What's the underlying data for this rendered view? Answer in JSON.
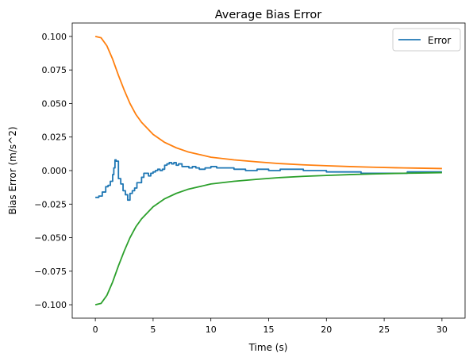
{
  "chart_data": {
    "type": "line",
    "title": "Average Bias Error",
    "xlabel": "Time (s)",
    "ylabel": "Bias Error (m/s^2)",
    "xlim": [
      -2,
      32
    ],
    "ylim": [
      -0.11,
      0.11
    ],
    "x_ticks": [
      0,
      5,
      10,
      15,
      20,
      25,
      30
    ],
    "x_tick_labels": [
      "0",
      "5",
      "10",
      "15",
      "20",
      "25",
      "30"
    ],
    "y_ticks": [
      -0.1,
      -0.075,
      -0.05,
      -0.025,
      0.0,
      0.025,
      0.05,
      0.075,
      0.1
    ],
    "y_tick_labels": [
      "−0.100",
      "−0.075",
      "−0.050",
      "−0.025",
      "0.000",
      "0.025",
      "0.050",
      "0.075",
      "0.100"
    ],
    "grid": false,
    "legend": {
      "position": "top-right",
      "entries": [
        "Error"
      ]
    },
    "series": [
      {
        "name": "Error",
        "color": "#1f77b4",
        "step": true,
        "x": [
          0,
          0.3,
          0.6,
          0.9,
          1.1,
          1.3,
          1.5,
          1.6,
          1.7,
          1.8,
          2.0,
          2.2,
          2.4,
          2.6,
          2.8,
          3.0,
          3.2,
          3.4,
          3.6,
          3.8,
          4.0,
          4.2,
          4.4,
          4.6,
          4.8,
          5.0,
          5.2,
          5.4,
          5.6,
          5.8,
          6.0,
          6.2,
          6.4,
          6.6,
          6.8,
          7.0,
          7.2,
          7.5,
          7.8,
          8.1,
          8.4,
          8.7,
          9.0,
          9.5,
          10.0,
          10.5,
          11.0,
          12.0,
          13.0,
          14.0,
          15.0,
          16.0,
          17.0,
          18.0,
          19.0,
          20.0,
          21.0,
          22.0,
          23.0,
          24.0,
          25.0,
          26.0,
          27.0,
          28.0,
          29.0,
          30.0
        ],
        "y": [
          -0.02,
          -0.019,
          -0.016,
          -0.012,
          -0.011,
          -0.008,
          -0.003,
          0.002,
          0.008,
          0.007,
          -0.006,
          -0.01,
          -0.015,
          -0.018,
          -0.022,
          -0.017,
          -0.015,
          -0.013,
          -0.009,
          -0.009,
          -0.005,
          -0.002,
          -0.002,
          -0.004,
          -0.002,
          -0.001,
          0.0,
          0.001,
          0.0,
          0.001,
          0.004,
          0.005,
          0.006,
          0.005,
          0.006,
          0.004,
          0.005,
          0.003,
          0.003,
          0.002,
          0.003,
          0.002,
          0.001,
          0.002,
          0.003,
          0.002,
          0.002,
          0.001,
          0.0,
          0.001,
          0.0,
          0.001,
          0.001,
          0.0,
          0.0,
          -0.001,
          -0.001,
          -0.001,
          -0.002,
          -0.002,
          -0.002,
          -0.002,
          -0.001,
          -0.001,
          -0.001,
          -0.001
        ]
      },
      {
        "name": "",
        "color": "#ff7f0e",
        "x": [
          0,
          0.5,
          1.0,
          1.5,
          2.0,
          2.5,
          3.0,
          3.5,
          4.0,
          5.0,
          6.0,
          7.0,
          8.0,
          9.0,
          10.0,
          12.0,
          14.0,
          16.0,
          18.0,
          20.0,
          22.0,
          24.0,
          26.0,
          28.0,
          30.0
        ],
        "y": [
          0.1,
          0.099,
          0.093,
          0.083,
          0.071,
          0.06,
          0.05,
          0.042,
          0.036,
          0.027,
          0.021,
          0.017,
          0.014,
          0.012,
          0.01,
          0.008,
          0.0065,
          0.0052,
          0.0043,
          0.0036,
          0.003,
          0.0025,
          0.0021,
          0.0018,
          0.0015
        ]
      },
      {
        "name": "",
        "color": "#2ca02c",
        "x": [
          0,
          0.5,
          1.0,
          1.5,
          2.0,
          2.5,
          3.0,
          3.5,
          4.0,
          5.0,
          6.0,
          7.0,
          8.0,
          9.0,
          10.0,
          12.0,
          14.0,
          16.0,
          18.0,
          20.0,
          22.0,
          24.0,
          26.0,
          28.0,
          30.0
        ],
        "y": [
          -0.1,
          -0.099,
          -0.093,
          -0.083,
          -0.071,
          -0.06,
          -0.05,
          -0.042,
          -0.036,
          -0.027,
          -0.021,
          -0.017,
          -0.014,
          -0.012,
          -0.01,
          -0.008,
          -0.0065,
          -0.0052,
          -0.0043,
          -0.0036,
          -0.003,
          -0.0025,
          -0.0021,
          -0.0018,
          -0.0015
        ]
      }
    ]
  }
}
